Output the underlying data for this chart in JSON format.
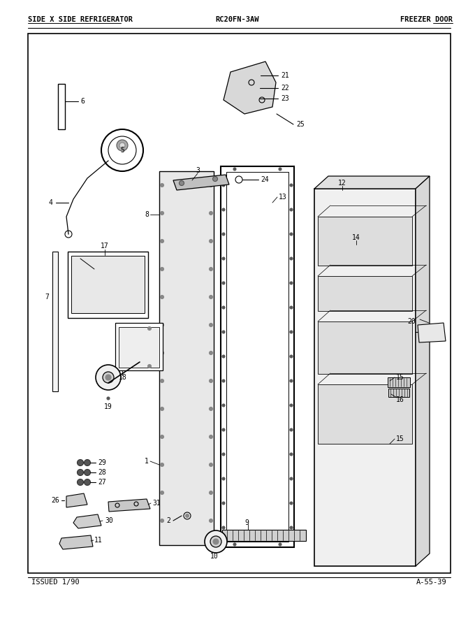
{
  "title_left": "SIDE X SIDE REFRIGERATOR",
  "title_center": "RC20FN-3AW",
  "title_right": "FREEZER DOOR",
  "footer_left": "ISSUED 1/90",
  "footer_right": "A-55-39",
  "bg_color": "#ffffff",
  "line_color": "#000000",
  "text_color": "#000000",
  "fig_width": 6.8,
  "fig_height": 8.9,
  "dpi": 100
}
